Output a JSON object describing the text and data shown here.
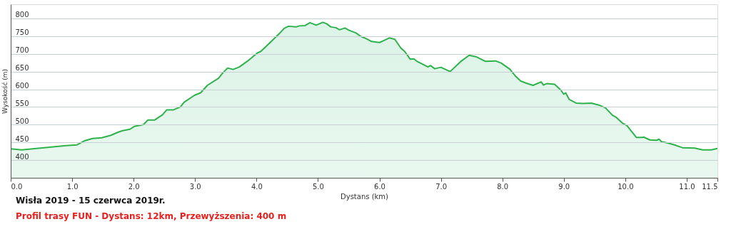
{
  "chart_data": {
    "type": "area",
    "title": "Wisła 2019 - 15 czerwca 2019r.",
    "subtitle": "Profil trasy FUN -  Dystans: 12km,  Przewyższenia: 400 m",
    "xlabel": "Dystans  (km)",
    "ylabel": "Wysokość (m)",
    "x": [
      0,
      0.18,
      0.9,
      1.08,
      1.21,
      1.33,
      1.48,
      1.63,
      1.75,
      1.82,
      1.94,
      2.01,
      2.16,
      2.23,
      2.34,
      2.47,
      2.54,
      2.65,
      2.76,
      2.82,
      2.99,
      3.09,
      3.2,
      3.38,
      3.45,
      3.53,
      3.62,
      3.72,
      3.85,
      4.01,
      4.07,
      4.24,
      4.37,
      4.45,
      4.52,
      4.64,
      4.7,
      4.79,
      4.87,
      4.97,
      5.08,
      5.14,
      5.21,
      5.29,
      5.35,
      5.44,
      5.5,
      5.62,
      5.69,
      5.81,
      5.87,
      6.0,
      6.05,
      6.16,
      6.25,
      6.35,
      6.41,
      6.5,
      6.56,
      6.62,
      6.79,
      6.83,
      6.9,
      7.0,
      7.15,
      7.32,
      7.46,
      7.57,
      7.72,
      7.89,
      7.98,
      8.12,
      8.22,
      8.3,
      8.39,
      8.5,
      8.63,
      8.67,
      8.72,
      8.85,
      8.95,
      9.0,
      9.03,
      9.09,
      9.2,
      9.31,
      9.45,
      9.58,
      9.68,
      9.79,
      9.85,
      9.95,
      10.03,
      10.18,
      10.27,
      10.3,
      10.4,
      10.51,
      10.55,
      10.59,
      10.7,
      10.8,
      10.93,
      11.13,
      11.26,
      11.4,
      11.5
    ],
    "series": [
      {
        "color": "#2eb24c",
        "values": [
          432,
          429,
          441,
          443,
          455,
          461,
          463,
          470,
          479,
          483,
          487,
          495,
          500,
          513,
          513,
          528,
          542,
          542,
          550,
          563,
          583,
          590,
          611,
          631,
          646,
          660,
          656,
          663,
          679,
          702,
          707,
          735,
          757,
          772,
          778,
          776,
          779,
          780,
          788,
          781,
          789,
          785,
          776,
          774,
          768,
          773,
          767,
          759,
          750,
          741,
          735,
          732,
          736,
          745,
          741,
          716,
          707,
          685,
          686,
          678,
          663,
          667,
          658,
          662,
          650,
          678,
          696,
          692,
          679,
          680,
          674,
          657,
          636,
          623,
          617,
          611,
          621,
          612,
          616,
          614,
          598,
          586,
          590,
          571,
          561,
          560,
          561,
          555,
          547,
          527,
          521,
          505,
          497,
          464,
          464,
          465,
          457,
          456,
          459,
          452,
          448,
          443,
          435,
          434,
          429,
          429,
          433
        ]
      }
    ],
    "xlim": [
      0,
      11.5
    ],
    "ylim": [
      350,
      840
    ],
    "xticks": [
      {
        "value": 0,
        "label": "0.0"
      },
      {
        "value": 1,
        "label": "1.0"
      },
      {
        "value": 2,
        "label": "2.0"
      },
      {
        "value": 3,
        "label": "3.0"
      },
      {
        "value": 4,
        "label": "4.0"
      },
      {
        "value": 5,
        "label": "5.0"
      },
      {
        "value": 6,
        "label": "6.0"
      },
      {
        "value": 7,
        "label": "7.0"
      },
      {
        "value": 8,
        "label": "8.0"
      },
      {
        "value": 9,
        "label": "9.0"
      },
      {
        "value": 10,
        "label": "10.0"
      },
      {
        "value": 11,
        "label": "11.0"
      },
      {
        "value": 11.5,
        "label": "11.5"
      }
    ],
    "yticks": [
      400,
      450,
      500,
      550,
      600,
      650,
      700,
      750,
      800
    ],
    "grid": "y",
    "legend": false,
    "marker": "none",
    "line_style": "solid"
  }
}
